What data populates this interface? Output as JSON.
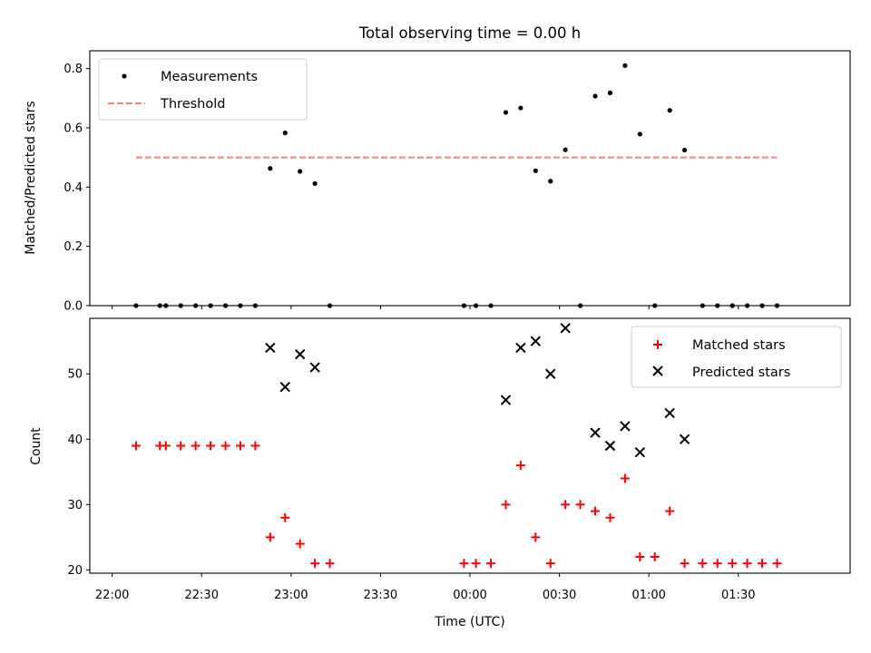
{
  "chart_data": [
    {
      "type": "scatter",
      "title": "Total observing time = 0.00 h",
      "xlabel": "",
      "ylabel": "Matched/Predicted stars",
      "ylim": [
        0,
        0.86
      ],
      "yticks": [
        "0.0",
        "0.2",
        "0.4",
        "0.6",
        "0.8"
      ],
      "x_range_minutes_after_2200": [
        -7.5,
        247.5
      ],
      "legend": {
        "placement": "top-left",
        "entries": [
          "Measurements",
          "Threshold"
        ]
      },
      "threshold": {
        "name": "Threshold",
        "value": 0.5,
        "x_start": "22:08",
        "x_end": "01:43",
        "color": "#ff7f7f",
        "style": "dashed"
      },
      "series": [
        {
          "name": "Measurements",
          "color": "#000000",
          "marker": "dot",
          "points": [
            [
              "22:08",
              0.0
            ],
            [
              "22:16",
              0.0
            ],
            [
              "22:18",
              0.0
            ],
            [
              "22:23",
              0.0
            ],
            [
              "22:28",
              0.0
            ],
            [
              "22:33",
              0.0
            ],
            [
              "22:38",
              0.0
            ],
            [
              "22:43",
              0.0
            ],
            [
              "22:48",
              0.0
            ],
            [
              "22:53",
              0.463
            ],
            [
              "22:58",
              0.583
            ],
            [
              "23:03",
              0.453
            ],
            [
              "23:08",
              0.412
            ],
            [
              "23:13",
              0.0
            ],
            [
              "23:58",
              0.0
            ],
            [
              "00:02",
              0.0
            ],
            [
              "00:07",
              0.0
            ],
            [
              "00:12",
              0.652
            ],
            [
              "00:17",
              0.667
            ],
            [
              "00:22",
              0.455
            ],
            [
              "00:27",
              0.42
            ],
            [
              "00:32",
              0.526
            ],
            [
              "00:37",
              0.0
            ],
            [
              "00:42",
              0.707
            ],
            [
              "00:47",
              0.718
            ],
            [
              "00:52",
              0.81
            ],
            [
              "00:57",
              0.579
            ],
            [
              "01:02",
              0.0
            ],
            [
              "01:07",
              0.659
            ],
            [
              "01:12",
              0.525
            ],
            [
              "01:18",
              0.0
            ],
            [
              "01:23",
              0.0
            ],
            [
              "01:28",
              0.0
            ],
            [
              "01:33",
              0.0
            ],
            [
              "01:38",
              0.0
            ],
            [
              "01:43",
              0.0
            ]
          ]
        }
      ]
    },
    {
      "type": "scatter",
      "title": "",
      "xlabel": "Time (UTC)",
      "ylabel": "Count",
      "ylim": [
        19.5,
        58.5
      ],
      "yticks": [
        "20",
        "30",
        "40",
        "50"
      ],
      "xticks": [
        "22:00",
        "22:30",
        "23:00",
        "23:30",
        "00:00",
        "00:30",
        "01:00",
        "01:30"
      ],
      "x_range_minutes_after_2200": [
        -7.5,
        247.5
      ],
      "legend": {
        "placement": "top-right",
        "entries": [
          "Matched stars",
          "Predicted stars"
        ]
      },
      "series": [
        {
          "name": "Matched stars",
          "color": "#ff0000",
          "marker": "plus",
          "points": [
            [
              "22:08",
              39
            ],
            [
              "22:16",
              39
            ],
            [
              "22:18",
              39
            ],
            [
              "22:23",
              39
            ],
            [
              "22:28",
              39
            ],
            [
              "22:33",
              39
            ],
            [
              "22:38",
              39
            ],
            [
              "22:43",
              39
            ],
            [
              "22:48",
              39
            ],
            [
              "22:53",
              25
            ],
            [
              "22:58",
              28
            ],
            [
              "23:03",
              24
            ],
            [
              "23:08",
              21
            ],
            [
              "23:13",
              21
            ],
            [
              "23:58",
              21
            ],
            [
              "00:02",
              21
            ],
            [
              "00:07",
              21
            ],
            [
              "00:12",
              30
            ],
            [
              "00:17",
              36
            ],
            [
              "00:22",
              25
            ],
            [
              "00:27",
              21
            ],
            [
              "00:32",
              30
            ],
            [
              "00:37",
              30
            ],
            [
              "00:42",
              29
            ],
            [
              "00:47",
              28
            ],
            [
              "00:52",
              34
            ],
            [
              "00:57",
              22
            ],
            [
              "01:02",
              22
            ],
            [
              "01:07",
              29
            ],
            [
              "01:12",
              21
            ],
            [
              "01:18",
              21
            ],
            [
              "01:23",
              21
            ],
            [
              "01:28",
              21
            ],
            [
              "01:33",
              21
            ],
            [
              "01:38",
              21
            ],
            [
              "01:43",
              21
            ]
          ]
        },
        {
          "name": "Predicted stars",
          "color": "#000000",
          "marker": "x",
          "points": [
            [
              "22:53",
              54
            ],
            [
              "22:58",
              48
            ],
            [
              "23:03",
              53
            ],
            [
              "23:08",
              51
            ],
            [
              "00:12",
              46
            ],
            [
              "00:17",
              54
            ],
            [
              "00:22",
              55
            ],
            [
              "00:27",
              50
            ],
            [
              "00:32",
              57
            ],
            [
              "00:42",
              41
            ],
            [
              "00:47",
              39
            ],
            [
              "00:52",
              42
            ],
            [
              "00:57",
              38
            ],
            [
              "01:07",
              44
            ],
            [
              "01:12",
              40
            ]
          ]
        }
      ]
    }
  ]
}
